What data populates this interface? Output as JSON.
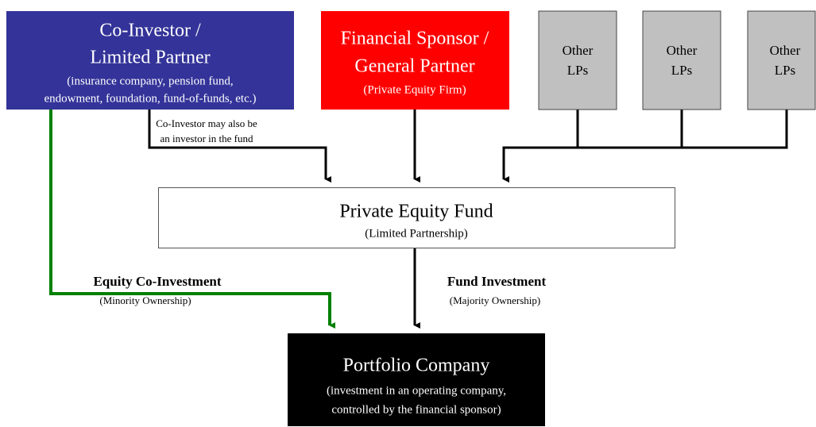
{
  "nodes": [
    {
      "lines": [
        "Co-Investor /",
        "Limited Partner",
        "(insurance company, pension fund,",
        "endowment, foundation, fund-of-funds, etc.)"
      ]
    },
    {
      "lines": [
        "Financial Sponsor /",
        "General Partner",
        "(Private Equity Firm)"
      ]
    },
    {
      "lines": [
        "Other",
        "LPs"
      ]
    },
    {
      "lines": [
        "Other",
        "LPs"
      ]
    },
    {
      "lines": [
        "Other",
        "LPs"
      ]
    },
    {
      "lines": [
        "Private Equity Fund",
        "(Limited Partnership)"
      ]
    },
    {
      "lines": [
        "Portfolio Company",
        "(investment in an operating company,",
        "controlled by the financial sponsor)"
      ]
    }
  ],
  "edges": [
    {
      "lines": [
        "Co-Investor may also be",
        "an investor in the fund"
      ]
    },
    {
      "lines": [
        "Equity Co-Investment",
        "(Minority Ownership)"
      ]
    },
    {
      "lines": [
        "Fund Investment",
        "(Majority Ownership)"
      ]
    }
  ]
}
